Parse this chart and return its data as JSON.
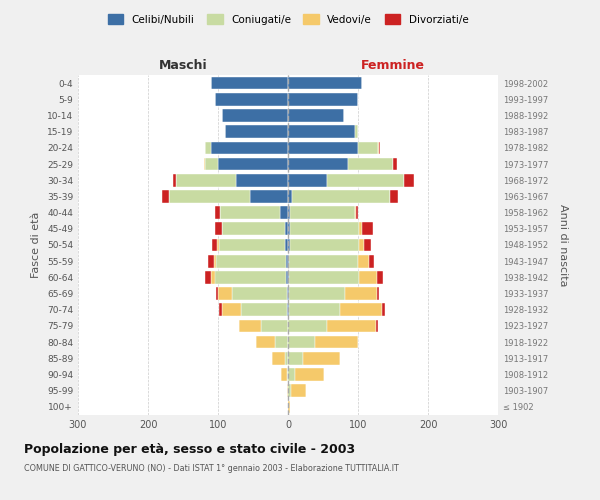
{
  "age_groups": [
    "100+",
    "95-99",
    "90-94",
    "85-89",
    "80-84",
    "75-79",
    "70-74",
    "65-69",
    "60-64",
    "55-59",
    "50-54",
    "45-49",
    "40-44",
    "35-39",
    "30-34",
    "25-29",
    "20-24",
    "15-19",
    "10-14",
    "5-9",
    "0-4"
  ],
  "birth_years": [
    "≤ 1902",
    "1903-1907",
    "1908-1912",
    "1913-1917",
    "1918-1922",
    "1923-1927",
    "1928-1932",
    "1933-1937",
    "1938-1942",
    "1943-1947",
    "1948-1952",
    "1953-1957",
    "1958-1962",
    "1963-1967",
    "1968-1972",
    "1973-1977",
    "1978-1982",
    "1983-1987",
    "1988-1992",
    "1993-1997",
    "1998-2002"
  ],
  "male": {
    "celibi": [
      0,
      0,
      0,
      0,
      0,
      0,
      2,
      2,
      3,
      3,
      4,
      5,
      12,
      55,
      75,
      100,
      110,
      90,
      95,
      105,
      110
    ],
    "coniugati": [
      0,
      0,
      2,
      5,
      18,
      38,
      65,
      78,
      102,
      100,
      95,
      90,
      85,
      115,
      85,
      18,
      8,
      0,
      0,
      0,
      0
    ],
    "vedovi": [
      0,
      2,
      8,
      18,
      28,
      32,
      28,
      20,
      5,
      3,
      2,
      0,
      0,
      0,
      0,
      2,
      0,
      0,
      0,
      0,
      0
    ],
    "divorziati": [
      0,
      0,
      0,
      0,
      0,
      0,
      4,
      3,
      8,
      8,
      7,
      10,
      8,
      10,
      5,
      0,
      0,
      0,
      0,
      0,
      0
    ]
  },
  "female": {
    "nubili": [
      0,
      0,
      0,
      0,
      0,
      0,
      2,
      2,
      2,
      2,
      3,
      3,
      3,
      5,
      55,
      85,
      100,
      95,
      80,
      100,
      105
    ],
    "coniugate": [
      0,
      4,
      10,
      22,
      38,
      55,
      72,
      80,
      100,
      98,
      98,
      98,
      92,
      140,
      110,
      65,
      28,
      5,
      0,
      0,
      0
    ],
    "vedove": [
      3,
      22,
      42,
      52,
      62,
      70,
      60,
      45,
      25,
      15,
      8,
      5,
      2,
      0,
      0,
      0,
      2,
      0,
      0,
      0,
      0
    ],
    "divorziate": [
      0,
      0,
      0,
      0,
      0,
      3,
      5,
      3,
      8,
      8,
      10,
      15,
      3,
      12,
      15,
      5,
      2,
      0,
      0,
      0,
      0
    ]
  },
  "colors": {
    "celibi_nubili": "#3d6fa5",
    "coniugati": "#c8dba2",
    "vedovi": "#f5c96a",
    "divorziati": "#cc2222"
  },
  "title": "Popolazione per età, sesso e stato civile - 2003",
  "subtitle": "COMUNE DI GATTICO-VERUNO (NO) - Dati ISTAT 1° gennaio 2003 - Elaborazione TUTTITALIA.IT",
  "xlabel_left": "Maschi",
  "xlabel_right": "Femmine",
  "ylabel_left": "Fasce di età",
  "ylabel_right": "Anni di nascita",
  "xlim": 300,
  "legend_labels": [
    "Celibi/Nubili",
    "Coniugati/e",
    "Vedovi/e",
    "Divorziati/e"
  ],
  "bg_color": "#f0f0f0",
  "plot_bg": "#ffffff"
}
